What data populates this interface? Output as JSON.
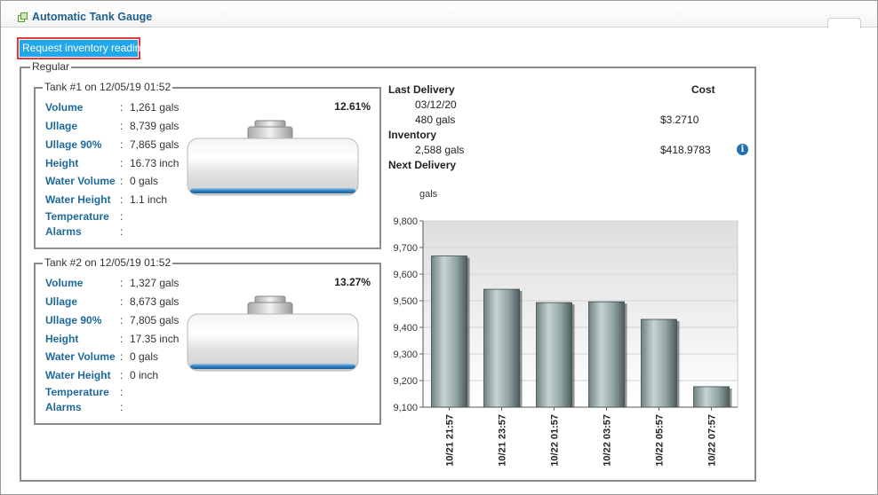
{
  "header": {
    "title": "Automatic Tank Gauge",
    "icon": "tank-gauge-icon"
  },
  "request_button": {
    "label": "Request inventory reading"
  },
  "regular": {
    "legend": "Regular",
    "tanks": [
      {
        "legend": "Tank #1 on 12/05/19 01:52",
        "percent": "12.61%",
        "fill_fraction": 0.1261,
        "rows": [
          {
            "label": "Volume",
            "value": "1,261 gals"
          },
          {
            "label": "Ullage",
            "value": "8,739 gals"
          },
          {
            "label": "Ullage 90%",
            "value": "7,865 gals"
          },
          {
            "label": "Height",
            "value": "16.73 inch"
          },
          {
            "label": "Water Volume",
            "value": "0 gals"
          },
          {
            "label": "Water Height",
            "value": "1.1 inch"
          },
          {
            "label": "Temperature",
            "value": ""
          },
          {
            "label": "Alarms",
            "value": ""
          }
        ]
      },
      {
        "legend": "Tank #2 on 12/05/19 01:52",
        "percent": "13.27%",
        "fill_fraction": 0.1327,
        "rows": [
          {
            "label": "Volume",
            "value": "1,327 gals"
          },
          {
            "label": "Ullage",
            "value": "8,673 gals"
          },
          {
            "label": "Ullage 90%",
            "value": "7,805 gals"
          },
          {
            "label": "Height",
            "value": "17.35 inch"
          },
          {
            "label": "Water Volume",
            "value": "0 gals"
          },
          {
            "label": "Water Height",
            "value": "0 inch"
          },
          {
            "label": "Temperature",
            "value": ""
          },
          {
            "label": "Alarms",
            "value": ""
          }
        ]
      }
    ],
    "delivery": {
      "last_delivery_label": "Last Delivery",
      "cost_header": "Cost",
      "last_date": "03/12/20",
      "last_amount": "480 gals",
      "last_cost": "$3.2710",
      "inventory_label": "Inventory",
      "inventory_amount": "2,588 gals",
      "inventory_cost": "$418.9783",
      "next_delivery_label": "Next Delivery",
      "info_icon": "info-icon"
    }
  },
  "chart_data": {
    "type": "bar",
    "ylabel": "gals",
    "categories": [
      "10/21 21:57",
      "10/21 23:57",
      "10/22 01:57",
      "10/22 03:57",
      "10/22 05:57",
      "10/22 07:57"
    ],
    "values": [
      9668,
      9543,
      9493,
      9496,
      9430,
      9177
    ],
    "ylim": [
      9100,
      9800
    ],
    "yticks": [
      "9,100",
      "9,200",
      "9,300",
      "9,400",
      "9,500",
      "9,600",
      "9,700",
      "9,800"
    ],
    "grid": true
  },
  "colors": {
    "accent": "#1d6a9a",
    "button": "#22a7ea",
    "button_border": "#e0393e",
    "water": "#2e7fc0"
  }
}
